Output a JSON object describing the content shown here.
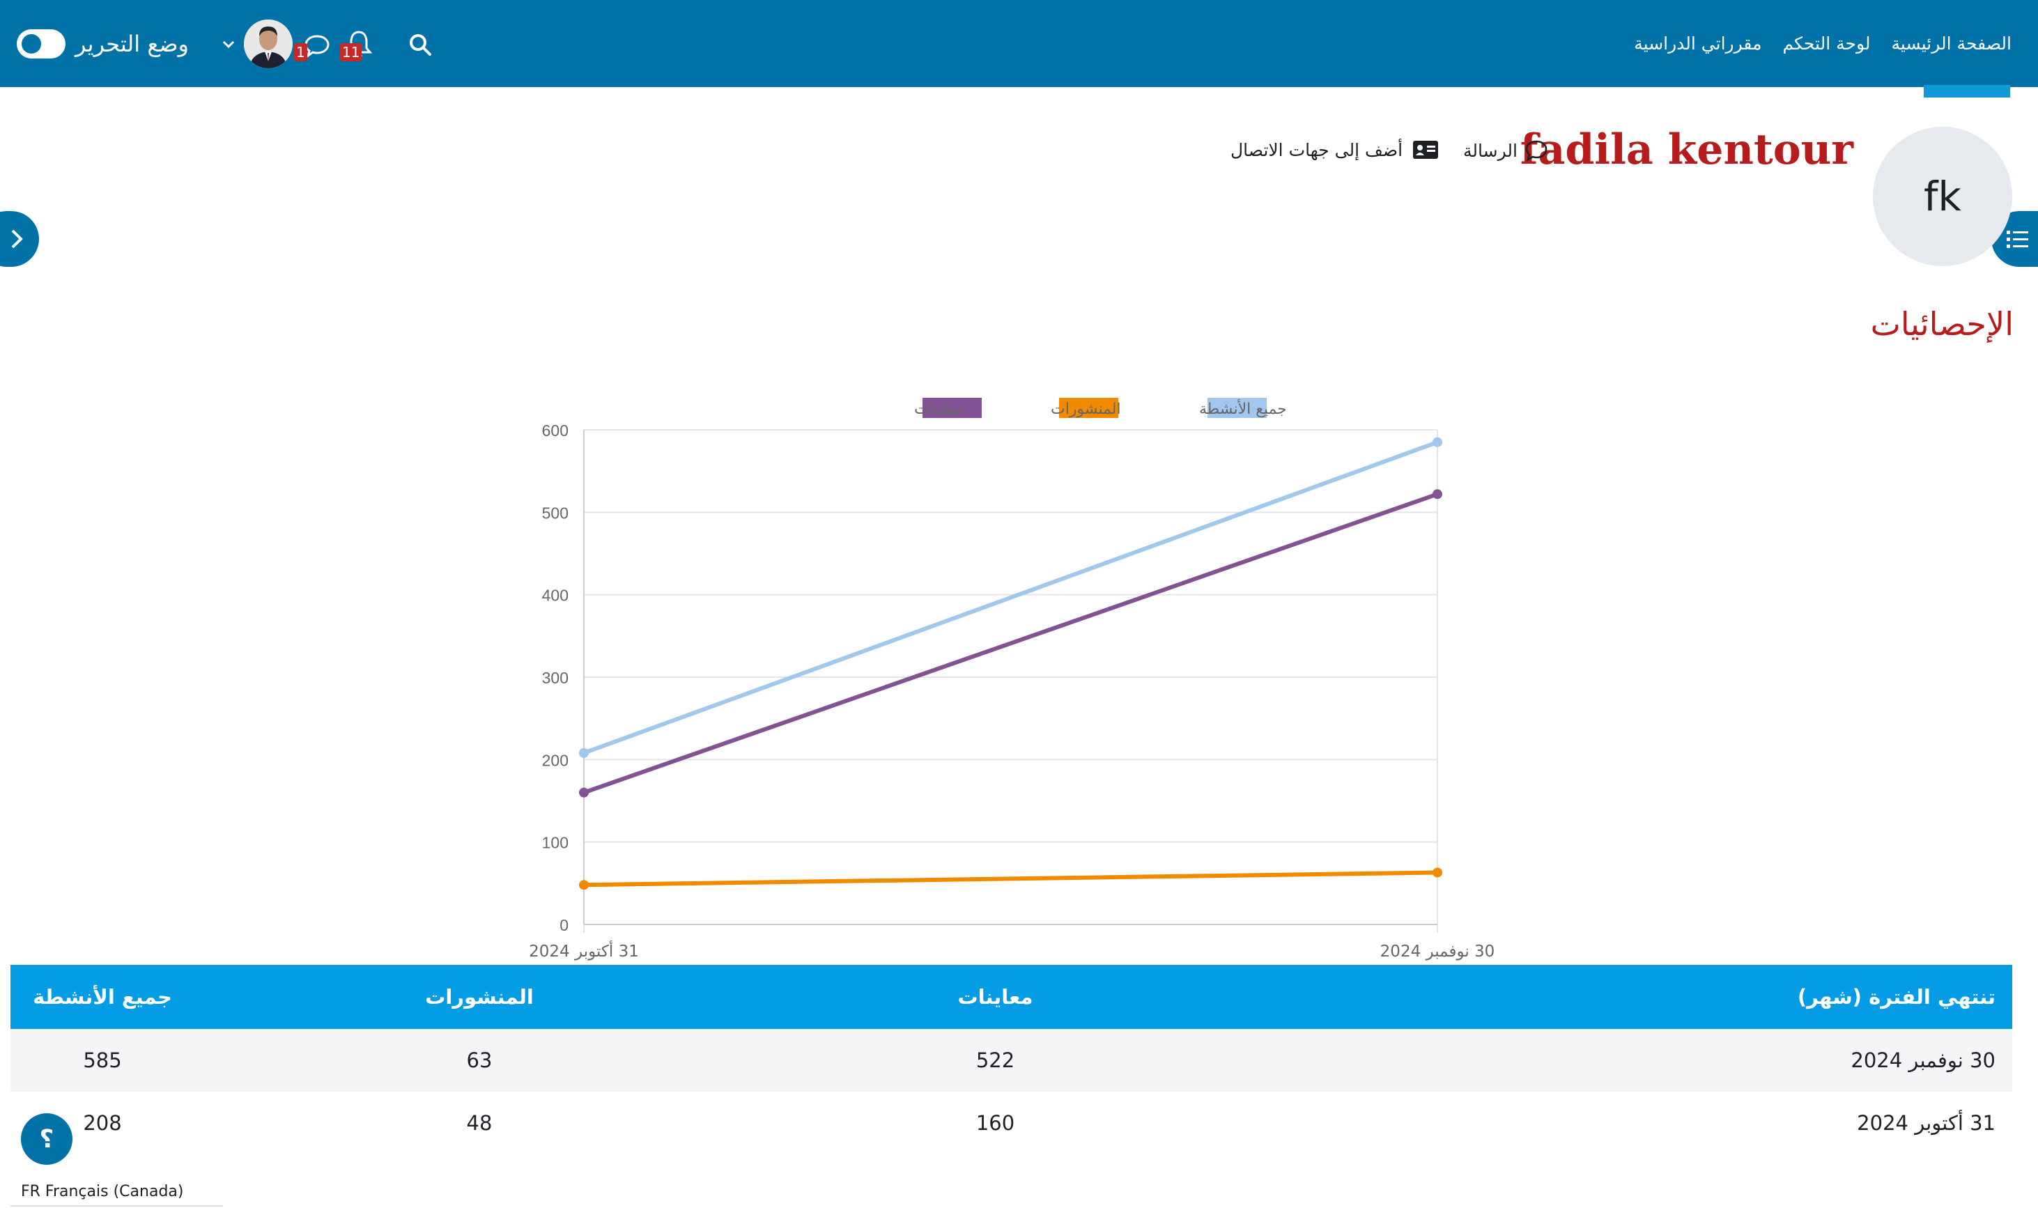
{
  "navbar": {
    "links": [
      "الصفحة الرئيسية",
      "لوحة التحكم",
      "مقرراتي الدراسية"
    ],
    "edit_mode_label": "وضع التحرير",
    "messages_badge": "1",
    "notifications_badge": "11"
  },
  "profile": {
    "initials": "fk",
    "name": "fadila kentour",
    "message_label": "الرسالة",
    "add_contact_label": "أضف إلى جهات الاتصال"
  },
  "section_title": "الإحصائيات",
  "chart_data": {
    "type": "line",
    "x": [
      "31 أكتوبر 2024",
      "30 نوفمبر 2024"
    ],
    "ylim": [
      0,
      600
    ],
    "yticks": [
      0,
      100,
      200,
      300,
      400,
      500,
      600
    ],
    "grid": true,
    "legend_position": "top",
    "series": [
      {
        "name": "جميع الأنشطة",
        "values": [
          208,
          585
        ],
        "color": "#a0c8ee"
      },
      {
        "name": "المنشورات",
        "values": [
          48,
          63
        ],
        "color": "#f28a00"
      },
      {
        "name": "معاينات",
        "values": [
          160,
          522
        ],
        "color": "#845294"
      }
    ]
  },
  "table": {
    "headers": [
      "تنتهي الفترة (شهر)",
      "معاينات",
      "المنشورات",
      "جميع الأنشطة"
    ],
    "rows": [
      [
        "30 نوفمبر 2024",
        "522",
        "63",
        "585"
      ],
      [
        "31 أكتوبر 2024",
        "160",
        "48",
        "208"
      ]
    ]
  },
  "footer": {
    "help_label": "؟",
    "language": "FR Français (Canada)"
  }
}
